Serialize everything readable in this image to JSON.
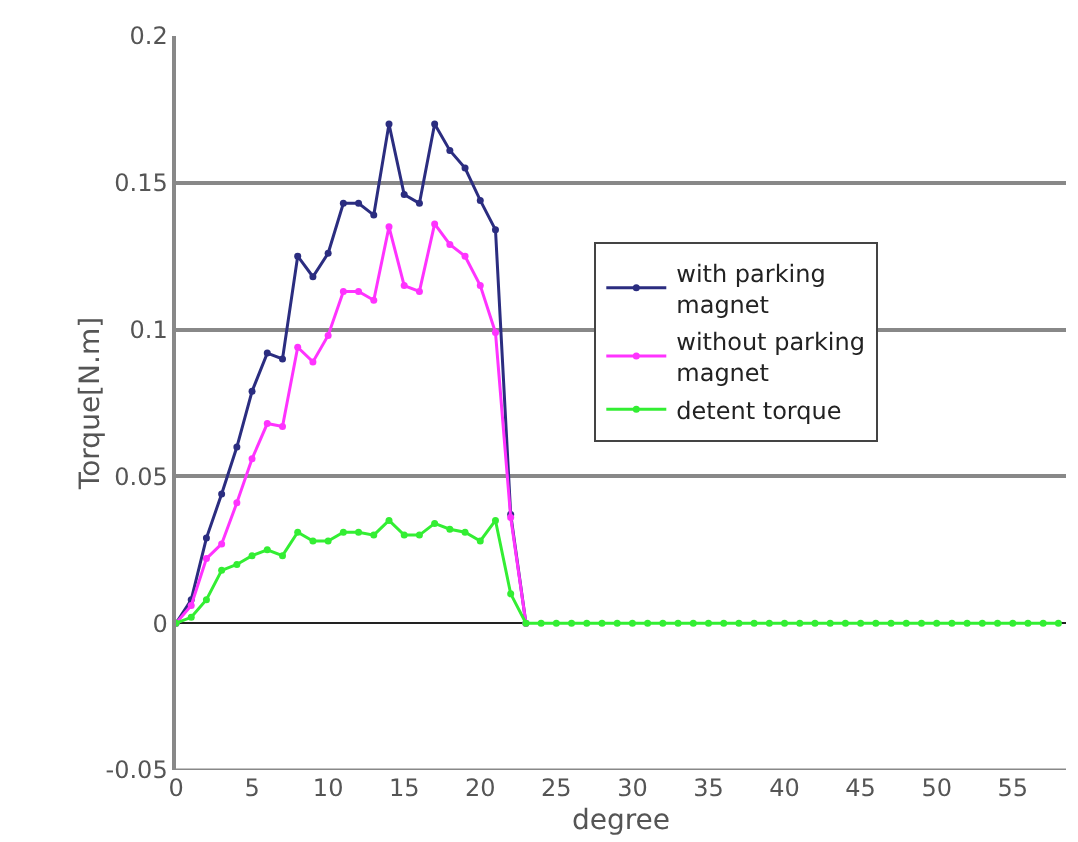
{
  "chart_data": {
    "type": "line",
    "xlabel": "degree",
    "ylabel": "Torque[N.m]",
    "x": [
      0,
      1,
      2,
      3,
      4,
      5,
      6,
      7,
      8,
      9,
      10,
      11,
      12,
      13,
      14,
      15,
      16,
      17,
      18,
      19,
      20,
      21,
      22,
      23,
      24,
      25,
      26,
      27,
      28,
      29,
      30,
      31,
      32,
      33,
      34,
      35,
      36,
      37,
      38,
      39,
      40,
      41,
      42,
      43,
      44,
      45,
      46,
      47,
      48,
      49,
      50,
      51,
      52,
      53,
      54,
      55,
      56,
      57,
      58
    ],
    "series": [
      {
        "name": "with parking magnet",
        "color": "#2b2d80",
        "values": [
          0,
          0.008,
          0.029,
          0.044,
          0.06,
          0.079,
          0.092,
          0.09,
          0.125,
          0.118,
          0.126,
          0.143,
          0.143,
          0.139,
          0.17,
          0.146,
          0.143,
          0.17,
          0.161,
          0.155,
          0.144,
          0.134,
          0.037,
          0,
          null,
          null,
          null,
          null,
          null,
          null,
          null,
          null,
          null,
          null,
          null,
          null,
          null,
          null,
          null,
          null,
          null,
          null,
          null,
          null,
          null,
          null,
          null,
          null,
          null,
          null,
          null,
          null,
          null,
          null,
          null,
          null,
          null,
          null,
          null
        ]
      },
      {
        "name": "without parking magnet",
        "color": "#ff33ff",
        "values": [
          0,
          0.006,
          0.022,
          0.027,
          0.041,
          0.056,
          0.068,
          0.067,
          0.094,
          0.089,
          0.098,
          0.113,
          0.113,
          0.11,
          0.135,
          0.115,
          0.113,
          0.136,
          0.129,
          0.125,
          0.115,
          0.099,
          0.036,
          0,
          null,
          null,
          null,
          null,
          null,
          null,
          null,
          null,
          null,
          null,
          null,
          null,
          null,
          null,
          null,
          null,
          null,
          null,
          null,
          null,
          null,
          null,
          null,
          null,
          null,
          null,
          null,
          null,
          null,
          null,
          null,
          null,
          null,
          null,
          null
        ]
      },
      {
        "name": "detent torque",
        "color": "#33ee33",
        "values": [
          0,
          0.002,
          0.008,
          0.018,
          0.02,
          0.023,
          0.025,
          0.023,
          0.031,
          0.028,
          0.028,
          0.031,
          0.031,
          0.03,
          0.035,
          0.03,
          0.03,
          0.034,
          0.032,
          0.031,
          0.028,
          0.035,
          0.01,
          0,
          0,
          0,
          0,
          0,
          0,
          0,
          0,
          0,
          0,
          0,
          0,
          0,
          0,
          0,
          0,
          0,
          0,
          0,
          0,
          0,
          0,
          0,
          0,
          0,
          0,
          0,
          0,
          0,
          0,
          0,
          0,
          0,
          0,
          0,
          0
        ]
      }
    ],
    "xlim": [
      0,
      58.5
    ],
    "xticks": [
      0,
      5,
      10,
      15,
      20,
      25,
      30,
      35,
      40,
      45,
      50,
      55
    ],
    "ylim": [
      -0.05,
      0.2
    ],
    "yticks": [
      -0.05,
      0,
      0.05,
      0.1,
      0.15,
      0.2
    ],
    "grid": "y",
    "legend": "right",
    "marker": "circle",
    "line_style": "solid"
  }
}
